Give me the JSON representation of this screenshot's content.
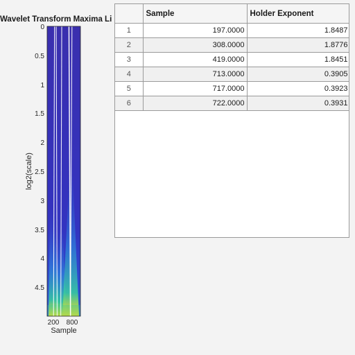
{
  "plot": {
    "title": "Wavelet Transform Maxima Li",
    "xlabel": "Sample",
    "ylabel": "log2(scale)",
    "x_ticks": [
      "200",
      "800"
    ],
    "y_ticks": [
      "0",
      "0.5",
      "1",
      "1.5",
      "2",
      "2.5",
      "3",
      "3.5",
      "4",
      "4.5"
    ]
  },
  "chart_data": {
    "type": "heatmap",
    "title": "Wavelet Transform Maxima Li",
    "xlabel": "Sample",
    "ylabel": "log2(scale)",
    "ylim": [
      0,
      5
    ],
    "y_reversed": true,
    "maxima_lines_at_sample": [
      197,
      308,
      419,
      713,
      717,
      722
    ],
    "colormap": [
      "#2a1a8c",
      "#3b4fd6",
      "#2fa6e0",
      "#37c9a0",
      "#f9e31c"
    ]
  },
  "table": {
    "columns": [
      "",
      "Sample",
      "Holder Exponent"
    ],
    "rows": [
      {
        "index": "1",
        "sample": "197.0000",
        "holder": "1.8487"
      },
      {
        "index": "2",
        "sample": "308.0000",
        "holder": "1.8776"
      },
      {
        "index": "3",
        "sample": "419.0000",
        "holder": "1.8451"
      },
      {
        "index": "4",
        "sample": "713.0000",
        "holder": "0.3905"
      },
      {
        "index": "5",
        "sample": "717.0000",
        "holder": "0.3923"
      },
      {
        "index": "6",
        "sample": "722.0000",
        "holder": "0.3931"
      }
    ]
  }
}
